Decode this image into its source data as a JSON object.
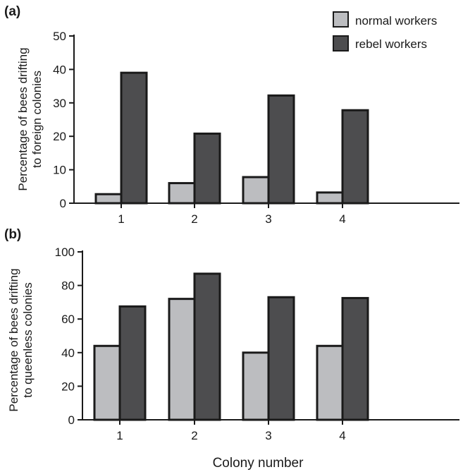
{
  "colors": {
    "normal": "#bcbdc0",
    "rebel": "#4d4d4f",
    "outline": "#1a1a1a"
  },
  "legend": {
    "normal_label": "normal workers",
    "rebel_label": "rebel workers"
  },
  "xlabel": "Colony number",
  "chart_data": [
    {
      "type": "bar",
      "panel_label": "(a)",
      "categories": [
        "1",
        "2",
        "3",
        "4"
      ],
      "series": [
        {
          "name": "normal workers",
          "values": [
            2.7,
            6,
            7.8,
            3.2
          ]
        },
        {
          "name": "rebel workers",
          "values": [
            39,
            20.8,
            32.2,
            27.8
          ]
        }
      ],
      "ylabel_lines": [
        "Percentage of bees drifting",
        "to foreign colonies"
      ],
      "ylim": [
        0,
        50
      ],
      "yticks": [
        0,
        10,
        20,
        30,
        40,
        50
      ],
      "grid": false,
      "legend_position": "top-right"
    },
    {
      "type": "bar",
      "panel_label": "(b)",
      "categories": [
        "1",
        "2",
        "3",
        "4"
      ],
      "series": [
        {
          "name": "normal workers",
          "values": [
            44,
            72,
            40,
            44
          ]
        },
        {
          "name": "rebel workers",
          "values": [
            67.5,
            87,
            73,
            72.5
          ]
        }
      ],
      "ylabel_lines": [
        "Percentage of bees drifting",
        "to queenless colonies"
      ],
      "ylim": [
        0,
        100
      ],
      "yticks": [
        0,
        20,
        40,
        60,
        80,
        100
      ],
      "grid": false
    }
  ]
}
